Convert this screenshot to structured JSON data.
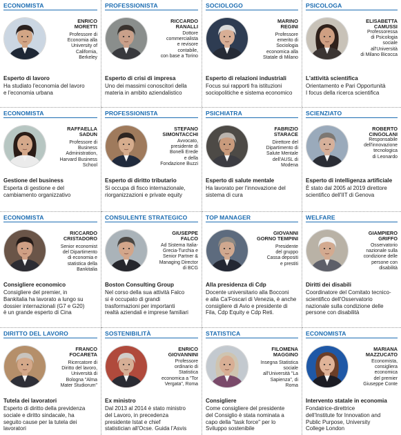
{
  "cards": [
    {
      "category": "ECONOMISTA",
      "name": "ENRICO\nMORETTI",
      "desc": "Professore di\nEconomia alla\nUniversity of\nCalifornia,\nBerkeley",
      "role": "Esperto di lavoro",
      "text": "Ha studiato l'economia del lavoro\ne l'economia urbana",
      "photo": {
        "bg": "#cbd6e2",
        "skin": "#d2a585",
        "hair": "#2b2220",
        "suit": "#1e2735"
      }
    },
    {
      "category": "PROFESSIONISTA",
      "name": "RICCARDO\nRANALLI",
      "desc": "Dottore\ncommercialista\ne revisore\ncontabile,\ncon base a Torino",
      "role": "Esperto di crisi di impresa",
      "text": "Uno dei massimi conoscitori della\nmateria in ambito aziendalistico",
      "photo": {
        "bg": "#8a8e8c",
        "skin": "#c9a08a",
        "hair": "#3a332f",
        "suit": "#38393d"
      }
    },
    {
      "category": "SOCIOLOGO",
      "name": "MARINO\nREGINI",
      "desc": "Professore\nemerito di\nSociologia\neconomica alla\nStatale di Milano",
      "role": "Esperto di relazioni industriali",
      "text": "Focus sui rapporti fra istituzioni\nsociopolitiche e sistema economico",
      "photo": {
        "bg": "#2e3c52",
        "skin": "#d8ae95",
        "hair": "#d9d9d9",
        "suit": "#262b36"
      }
    },
    {
      "category": "PSICOLOGA",
      "name": "ELISABETTA\nCAMUSSI",
      "desc": "Professoressa\ndi Psicologia\nsociale\nall'Università\ndi Milano Bicocca",
      "role": "L'attività scientifica",
      "text": "Orientamento e Pari Opportunità\nI focus della ricerca scientifica",
      "photo": {
        "bg": "#c8c2b8",
        "skin": "#cf9f82",
        "hair": "#2f211b",
        "suit": "#3b3533"
      }
    },
    {
      "category": "ECONOMISTA",
      "name": "RAFFAELLA\nSADUN",
      "desc": "Professore di\nBusiness\nAdministration,\nHarvard Business\nSchool",
      "role": "Gestione del business",
      "text": "Esperta di gestione e del\ncambiamento organizzativo",
      "photo": {
        "bg": "#b7c6c2",
        "skin": "#d4a88a",
        "hair": "#2a1c17",
        "suit": "#ebebeb"
      }
    },
    {
      "category": "PROFESSIONISTA",
      "name": "STEFANO\nSIMONTACCHI",
      "desc": "Avvocato,\npresidente di\nBonelli Erede\ne della\nFondazione Buzzi",
      "role": "Esperto di diritto tributario",
      "text": "Si occupa di fisco internazionale,\nriorganizzazioni e private equity",
      "photo": {
        "bg": "#9f7a5c",
        "skin": "#d6ac8d",
        "hair": "#2e2521",
        "suit": "#202a3c"
      }
    },
    {
      "category": "PSICHIATRA",
      "name": "FABRIZIO\nSTARACE",
      "desc": "Direttore del\nDipartimento di\nSalute Mentale\ndell'AUSL di\nModena",
      "role": "Esperto di salute mentale",
      "text": "Ha lavorato per l'innovazione del\nsistema di cura",
      "photo": {
        "bg": "#4d4a46",
        "skin": "#c89a7c",
        "hair": "#b9b3ad",
        "suit": "#3c3c42"
      }
    },
    {
      "category": "SCIENZIATO",
      "name": "ROBERTO\nCINGOLANI",
      "desc": "Responsabile\ndell'innovazione\ntecnologica\ndi Leonardo",
      "role": "Esperto di intelligenza artificiale",
      "text": "È stato dal 2005 al 2019 direttore\nscientifico dell'IIT di Genova",
      "photo": {
        "bg": "#9aaabb",
        "skin": "#d6b09a",
        "hair": "#7d7873",
        "suit": "#2a2d35"
      }
    },
    {
      "category": "ECONOMISTA",
      "name": "RICCARDO\nCRISTADORO",
      "desc": "Senior economist\ndel Dipartimento\ndi economia e\nstatistica della\nBankitalia",
      "role": "Consigliere economico",
      "text": "Consigliere del premier, in\nBankitalia ha lavorato a lungo su\ndossier internazionali (G7 e G20)\nè un grande esperto di Cina",
      "photo": {
        "bg": "#6a5548",
        "skin": "#cf9f84",
        "hair": "#241b18",
        "suit": "#2c2c33"
      }
    },
    {
      "category": "CONSULENTE STRATEGICO",
      "name": "GIUSEPPE\nFALCO",
      "desc": "Ad Sistema Italia-\nGrecia-Turchia e\nSenior Partner &\nManaging Director\ndi BCG",
      "role": "Boston Consulting Group",
      "text": "Nel corso della sua attività Falco\nsi è occupato di grandi\ntrasformazioni per importanti\nrealtà aziendali e imprese familiari",
      "photo": {
        "bg": "#aab3b9",
        "skin": "#d2a68b",
        "hair": "#4a4642",
        "suit": "#25262c"
      }
    },
    {
      "category": "TOP MANAGER",
      "name": "GIOVANNI\nGORNO TEMPINI",
      "desc": "Presidente\ndel gruppo\nCassa depositi\ne prestiti",
      "role": "Alla presidenza di Cdp",
      "text": "Docente universitario alla Bocconi\ne alla Ca'Foscari di Venezia, è anche\nconsigliere di Avio e presidente di\nFila, Cdp Equity e Cdp Reti.",
      "photo": {
        "bg": "#5d6b7e",
        "skin": "#d0a88f",
        "hair": "#8e8983",
        "suit": "#232733"
      }
    },
    {
      "category": "WELFARE",
      "name": "GIAMPIERO\nGRIFFO",
      "desc": "Osservatorio\nnazionale sulla\ncondizione delle\npersone con\ndisabilità",
      "role": "Diritti dei disabili",
      "text": "Coordinatore del Comitato tecnico-\nscientifico dell'Osservatorio\nnazionale sulla condizione delle\npersone con disabilità",
      "photo": {
        "bg": "#b9b2a6",
        "skin": "#d3aa90",
        "hair": "#eeeeee",
        "suit": "#5d5f69"
      }
    },
    {
      "category": "DIRITTO DEL LAVORO",
      "name": "FRANCO\nFOCARETA",
      "desc": "Ricercatore di\nDiritto del lavoro,\nUniversità di\nBologna \"Alma\nMater Studiorum\"",
      "role": "Tutela dei lavoratori",
      "text": "Esperto di diritto della previdenza\nsociale e diritto sindacale, ha\nseguito cause per la tutela dei\nlavoratori",
      "photo": {
        "bg": "#b58f6a",
        "skin": "#d4a889",
        "hair": "#c9c4be",
        "suit": "#2e2f37"
      }
    },
    {
      "category": "SOSTENIBILITÀ",
      "name": "ENRICO\nGIOVANNINI",
      "desc": "Professore\nordinario di\nStatistica\neconomica a \"Tor\nVergata\", Roma",
      "role": "Ex ministro",
      "text": "Dal 2013 al 2014 è stato ministro\ndel Lavoro, in precedenza\npresidente Istat e chief\nstatistician all'Ocse. Guida l'Asvis",
      "photo": {
        "bg": "#b04a3c",
        "skin": "#d6ae95",
        "hair": "#d1cec9",
        "suit": "#2a2b33"
      }
    },
    {
      "category": "STATISTICA",
      "name": "FILOMENA\nMAGGINO",
      "desc": "Insegna Statistica\nsociale\nall'Università \"La\nSapienza\", di\nRoma",
      "role": "Consigliere",
      "text": "Come consigliere del presidente\ndel Consiglio è stata nominata a\ncapo della \"task force\" per lo\nSviluppo sostenibile",
      "photo": {
        "bg": "#c3c9cf",
        "skin": "#d8ae94",
        "hair": "#cfc4b0",
        "suit": "#7a4a6a"
      }
    },
    {
      "category": "ECONOMISTA",
      "name": "MARIANA\nMAZZUCATO",
      "desc": "Economista,\nconsigliera\neconomica\ndel premier\nGiuseppe Conte",
      "role": "Intervento statale in economia",
      "text": "Fondatrice-direttrice\ndell'Institute for Innovation and\nPublic Purpose, University\nCollege London",
      "photo": {
        "bg": "#1f58a6",
        "skin": "#e0b398",
        "hair": "#6b3e28",
        "suit": "#1c1c24"
      }
    }
  ]
}
